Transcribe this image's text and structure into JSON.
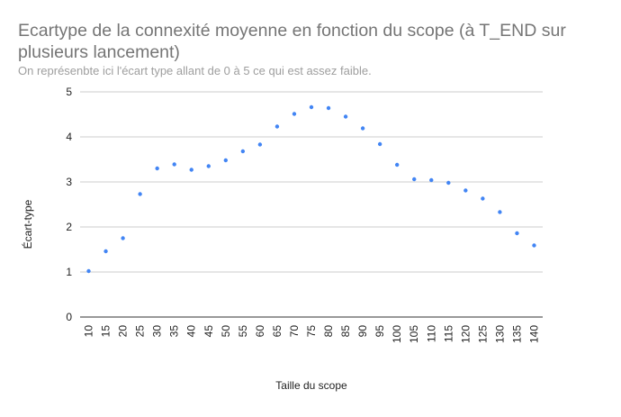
{
  "chart_data": {
    "type": "scatter",
    "title": "Ecartype de la connexité moyenne en fonction du scope  (à T_END sur plusieurs lancement)",
    "subtitle": "On représenbte ici l'écart type allant de 0 à 5 ce qui est assez faible.",
    "xlabel": "Taille du scope",
    "ylabel": "Écart-type",
    "ylim": [
      0,
      5
    ],
    "yticks": [
      "0",
      "1",
      "2",
      "3",
      "4",
      "5"
    ],
    "grid": true,
    "point_color": "#4285f4",
    "x": [
      "10",
      "15",
      "20",
      "25",
      "30",
      "35",
      "40",
      "45",
      "50",
      "55",
      "60",
      "65",
      "70",
      "75",
      "80",
      "85",
      "90",
      "95",
      "100",
      "105",
      "110",
      "115",
      "120",
      "125",
      "130",
      "135",
      "140"
    ],
    "values": [
      1.02,
      1.46,
      1.75,
      2.73,
      3.3,
      3.39,
      3.27,
      3.35,
      3.48,
      3.68,
      3.83,
      4.23,
      4.51,
      4.66,
      4.64,
      4.45,
      4.19,
      3.84,
      3.38,
      3.06,
      3.04,
      2.98,
      2.81,
      2.63,
      2.33,
      1.86,
      1.59
    ]
  }
}
